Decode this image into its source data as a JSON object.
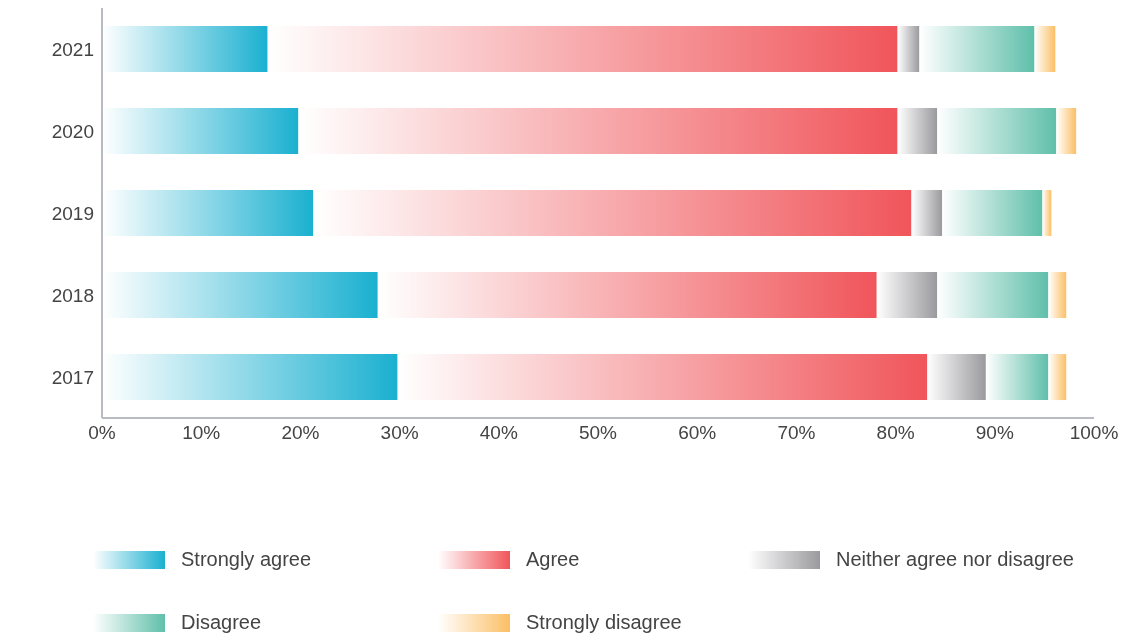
{
  "chart_data": {
    "type": "bar",
    "orientation": "horizontal",
    "stacked": true,
    "categories": [
      "2021",
      "2020",
      "2019",
      "2018",
      "2017"
    ],
    "series": [
      {
        "name": "Strongly agree",
        "color": "#1ab0d0",
        "values": [
          16.7,
          19.8,
          21.3,
          27.8,
          29.8
        ]
      },
      {
        "name": "Agree",
        "color": "#f0555a",
        "values": [
          63.5,
          60.4,
          60.3,
          50.3,
          53.4
        ]
      },
      {
        "name": "Neither agree nor disagree",
        "color": "#9a9a9e",
        "values": [
          2.2,
          4.0,
          3.1,
          6.1,
          5.9
        ]
      },
      {
        "name": "Disagree",
        "color": "#5fbfaa",
        "values": [
          11.6,
          12.0,
          10.1,
          11.2,
          6.3
        ]
      },
      {
        "name": "Strongly disagree",
        "color": "#fbbf66",
        "values": [
          2.1,
          2.0,
          0.9,
          1.8,
          1.8
        ]
      }
    ],
    "xlim": [
      0,
      100
    ],
    "xticks": [
      {
        "value": 0,
        "label": "0%"
      },
      {
        "value": 10,
        "label": "10%"
      },
      {
        "value": 20,
        "label": "20%"
      },
      {
        "value": 30,
        "label": "30%"
      },
      {
        "value": 40,
        "label": "40%"
      },
      {
        "value": 50,
        "label": "50%"
      },
      {
        "value": 60,
        "label": "60%"
      },
      {
        "value": 70,
        "label": "70%"
      },
      {
        "value": 80,
        "label": "80%"
      },
      {
        "value": 90,
        "label": "90%"
      },
      {
        "value": 100,
        "label": "100%"
      }
    ],
    "grid": false,
    "legend": "bottom"
  }
}
